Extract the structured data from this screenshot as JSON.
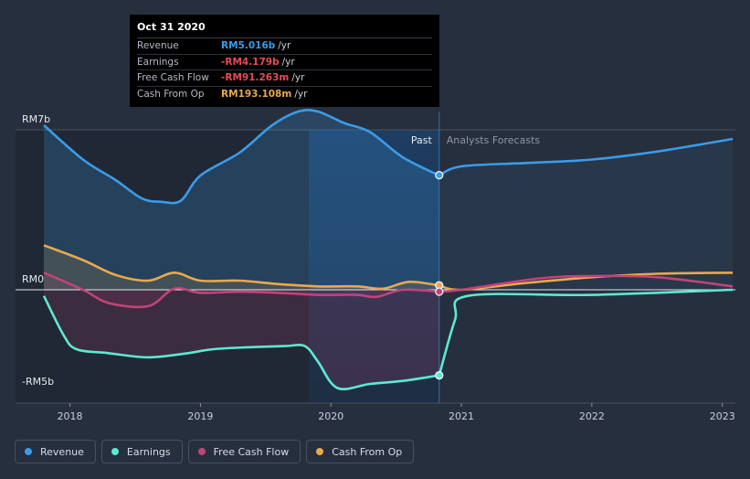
{
  "tooltip": {
    "date": "Oct 31 2020",
    "rows": [
      {
        "label": "Revenue",
        "value": "RM5.016b",
        "unit": "/yr",
        "color": "#3a9be8"
      },
      {
        "label": "Earnings",
        "value": "-RM4.179b",
        "unit": "/yr",
        "color": "#e84a55"
      },
      {
        "label": "Free Cash Flow",
        "value": "-RM91.263m",
        "unit": "/yr",
        "color": "#e84a55"
      },
      {
        "label": "Cash From Op",
        "value": "RM193.108m",
        "unit": "/yr",
        "color": "#e8a94d"
      }
    ]
  },
  "chart_data": {
    "type": "area",
    "y_unit": "RM b",
    "ylim": [
      -5,
      7
    ],
    "y_ticks": [
      {
        "value": 7,
        "label": "RM7b"
      },
      {
        "value": 0,
        "label": "RM0"
      },
      {
        "value": -5,
        "label": "-RM5b"
      }
    ],
    "xlim": [
      2017.8,
      2023.1
    ],
    "x_ticks": [
      {
        "value": 2018,
        "label": "2018"
      },
      {
        "value": 2019,
        "label": "2019"
      },
      {
        "value": 2020,
        "label": "2020"
      },
      {
        "value": 2021,
        "label": "2021"
      },
      {
        "value": 2022,
        "label": "2022"
      },
      {
        "value": 2023,
        "label": "2023"
      }
    ],
    "past_label": "Past",
    "forecast_label": "Analysts Forecasts",
    "divider_x": 2020.83,
    "highlight_start": 2019.83,
    "series": [
      {
        "name": "Revenue",
        "color": "#3a9be8",
        "past": [
          [
            2017.8,
            7.2
          ],
          [
            2018.1,
            5.7
          ],
          [
            2018.35,
            4.8
          ],
          [
            2018.55,
            4.0
          ],
          [
            2018.7,
            3.85
          ],
          [
            2018.85,
            3.9
          ],
          [
            2019.0,
            5.0
          ],
          [
            2019.3,
            6.0
          ],
          [
            2019.55,
            7.2
          ],
          [
            2019.75,
            7.8
          ],
          [
            2019.9,
            7.8
          ],
          [
            2020.1,
            7.3
          ],
          [
            2020.3,
            6.9
          ],
          [
            2020.55,
            5.8
          ],
          [
            2020.83,
            5.0
          ]
        ],
        "forecast": [
          [
            2020.83,
            5.0
          ],
          [
            2021.0,
            5.4
          ],
          [
            2021.5,
            5.55
          ],
          [
            2022.0,
            5.7
          ],
          [
            2022.5,
            6.05
          ],
          [
            2023.08,
            6.6
          ]
        ]
      },
      {
        "name": "Earnings",
        "color": "#5ee8d2",
        "past": [
          [
            2017.8,
            -0.3
          ],
          [
            2017.95,
            -2.2
          ],
          [
            2018.05,
            -2.9
          ],
          [
            2018.3,
            -3.1
          ],
          [
            2018.6,
            -3.3
          ],
          [
            2018.9,
            -3.1
          ],
          [
            2019.1,
            -2.9
          ],
          [
            2019.4,
            -2.8
          ],
          [
            2019.65,
            -2.75
          ],
          [
            2019.8,
            -2.75
          ],
          [
            2019.9,
            -3.5
          ],
          [
            2020.05,
            -4.8
          ],
          [
            2020.3,
            -4.6
          ],
          [
            2020.55,
            -4.45
          ],
          [
            2020.83,
            -4.18
          ]
        ],
        "forecast": [
          [
            2020.83,
            -4.18
          ],
          [
            2020.95,
            -1.5
          ],
          [
            2021.05,
            -0.3
          ],
          [
            2022.0,
            -0.25
          ],
          [
            2023.08,
            0
          ]
        ]
      },
      {
        "name": "Free Cash Flow",
        "color": "#c2437a",
        "past": [
          [
            2017.8,
            0.75
          ],
          [
            2018.1,
            0.0
          ],
          [
            2018.3,
            -0.65
          ],
          [
            2018.6,
            -0.8
          ],
          [
            2018.8,
            0.05
          ],
          [
            2019.0,
            -0.15
          ],
          [
            2019.3,
            -0.1
          ],
          [
            2019.6,
            -0.15
          ],
          [
            2019.9,
            -0.25
          ],
          [
            2020.2,
            -0.25
          ],
          [
            2020.35,
            -0.35
          ],
          [
            2020.55,
            0.0
          ],
          [
            2020.83,
            -0.09
          ]
        ],
        "forecast": [
          [
            2020.83,
            -0.09
          ],
          [
            2021.0,
            0.0
          ],
          [
            2021.6,
            0.5
          ],
          [
            2022.0,
            0.6
          ],
          [
            2022.5,
            0.55
          ],
          [
            2023.08,
            0.15
          ]
        ]
      },
      {
        "name": "Cash From Op",
        "color": "#e8a94d",
        "past": [
          [
            2017.8,
            1.95
          ],
          [
            2018.1,
            1.3
          ],
          [
            2018.35,
            0.65
          ],
          [
            2018.6,
            0.4
          ],
          [
            2018.8,
            0.75
          ],
          [
            2019.0,
            0.4
          ],
          [
            2019.3,
            0.4
          ],
          [
            2019.6,
            0.25
          ],
          [
            2019.9,
            0.15
          ],
          [
            2020.2,
            0.15
          ],
          [
            2020.4,
            0.05
          ],
          [
            2020.6,
            0.35
          ],
          [
            2020.83,
            0.19
          ]
        ],
        "forecast": [
          [
            2020.83,
            0.19
          ],
          [
            2021.0,
            0.0
          ],
          [
            2021.5,
            0.3
          ],
          [
            2022.0,
            0.55
          ],
          [
            2022.5,
            0.7
          ],
          [
            2023.08,
            0.75
          ]
        ]
      }
    ],
    "markers": [
      {
        "series": "Revenue",
        "x": 2020.83,
        "y": 5.016
      },
      {
        "series": "Cash From Op",
        "x": 2020.83,
        "y": 0.193
      },
      {
        "series": "Free Cash Flow",
        "x": 2020.83,
        "y": -0.091
      },
      {
        "series": "Earnings",
        "x": 2020.83,
        "y": -4.179
      }
    ]
  },
  "legend": [
    {
      "label": "Revenue",
      "color": "#3a9be8"
    },
    {
      "label": "Earnings",
      "color": "#5ee8d2"
    },
    {
      "label": "Free Cash Flow",
      "color": "#c2437a"
    },
    {
      "label": "Cash From Op",
      "color": "#e8a94d"
    }
  ]
}
